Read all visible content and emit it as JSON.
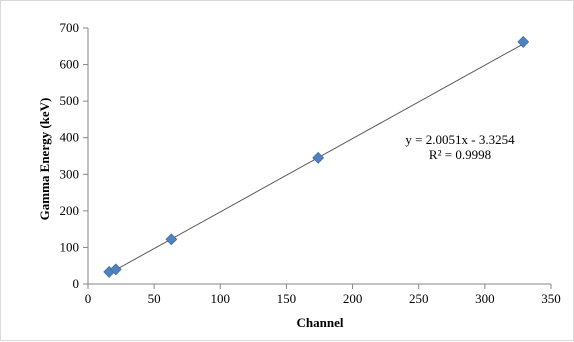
{
  "chart_data": {
    "type": "scatter",
    "xlabel": "Channel",
    "ylabel": "Gamma Energy (keV)",
    "xlim": [
      0,
      350
    ],
    "ylim": [
      0,
      700
    ],
    "xticks": [
      "0",
      "50",
      "100",
      "150",
      "200",
      "250",
      "300",
      "350"
    ],
    "yticks": [
      "0",
      "100",
      "200",
      "300",
      "400",
      "500",
      "600",
      "700"
    ],
    "grid": false,
    "series": [
      {
        "marker": "diamond",
        "color": "#4f81bd",
        "points": [
          {
            "x": 16,
            "y": 33
          },
          {
            "x": 21,
            "y": 40
          },
          {
            "x": 63,
            "y": 122
          },
          {
            "x": 174,
            "y": 345
          },
          {
            "x": 329,
            "y": 662
          }
        ]
      }
    ],
    "trendline": {
      "type": "linear",
      "slope": 2.0051,
      "intercept": -3.3254,
      "color": "#595959",
      "x_range": [
        15,
        332
      ]
    },
    "annotations": {
      "equation": "y = 2.0051x - 3.3254",
      "r_squared": "R² = 0.9998"
    }
  }
}
